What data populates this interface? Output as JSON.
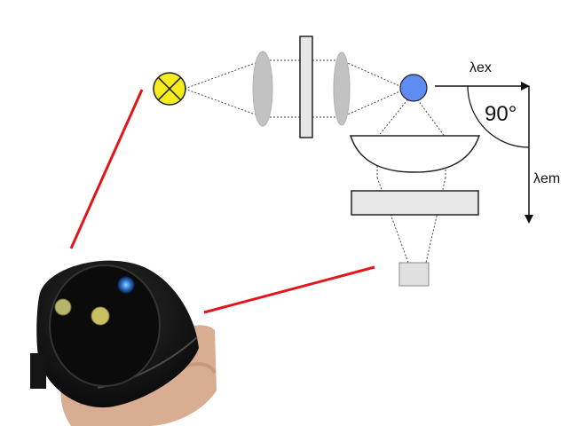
{
  "labels": {
    "excitation_wavelength": "λex",
    "emission_wavelength": "λem",
    "detection_angle": "90°"
  },
  "colors": {
    "lamp_fill": "#f5ec1e",
    "sample_fill": "#5e8cf2",
    "leader_line": "#e4141b",
    "lens_fill": "#c2c2c2",
    "filter_fill": "#e6e6e6",
    "detector_fill": "#e0e0e0",
    "sensor_body": "#111111",
    "sensor_window_green": "#b6b56b",
    "sensor_window_yellow": "#c9c063",
    "sensor_window_blue": "#2f74c9",
    "hand_skin": "#d9ad92"
  },
  "icons": {
    "lamp": "light-source-cross-circle-icon",
    "sample": "sample-dot-icon",
    "angle": "right-angle-arc-icon"
  }
}
